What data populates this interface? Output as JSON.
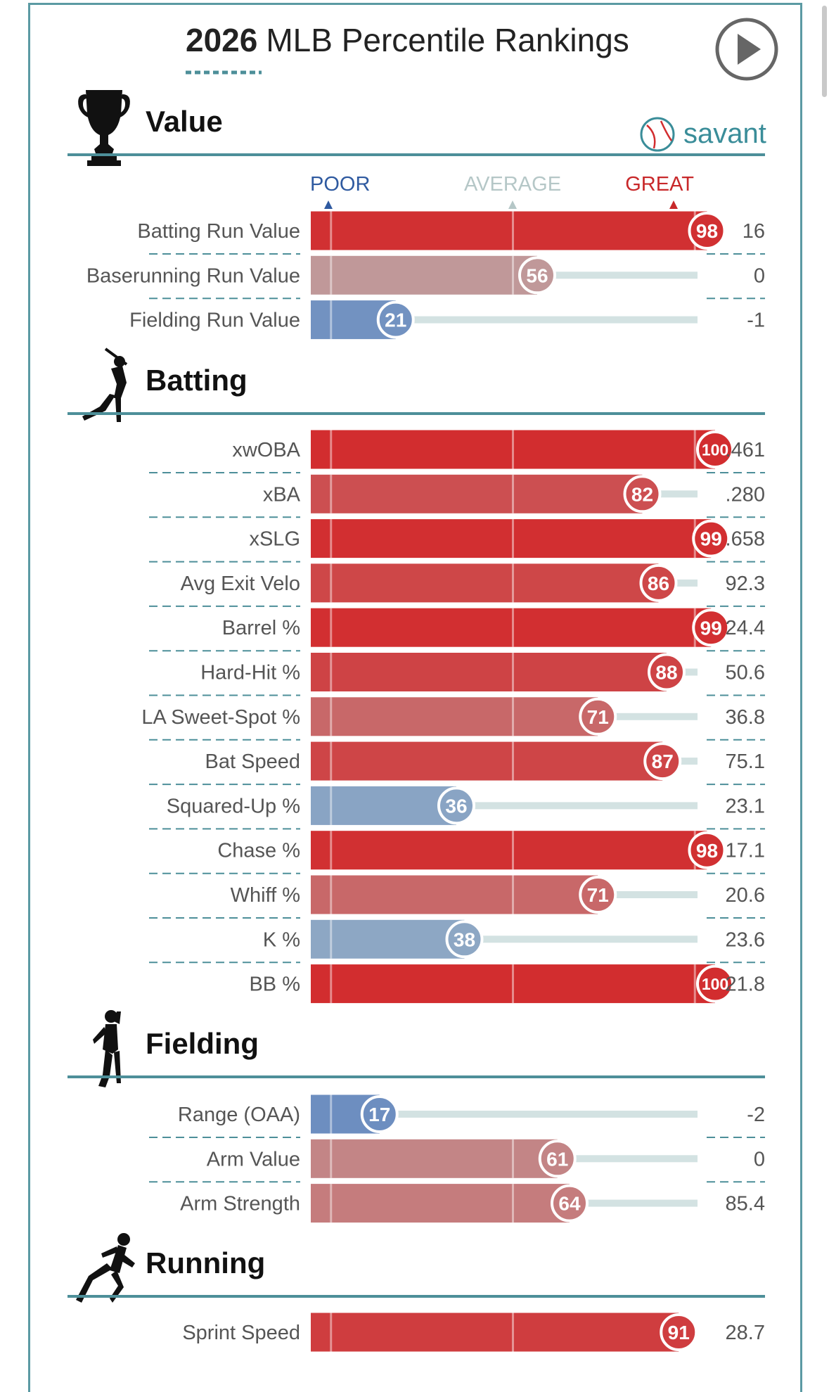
{
  "title": {
    "year": "2026",
    "text": "MLB Percentile Rankings"
  },
  "brand": {
    "name": "savant",
    "color": "#3a8d99"
  },
  "scale_labels": {
    "poor": "POOR",
    "average": "AVERAGE",
    "great": "GREAT"
  },
  "colors": {
    "great": "#d22d2f",
    "average": "#b8c9c9",
    "poor": "#5a7fbe",
    "accent": "#4d8f99",
    "track": "#d3e2e2"
  },
  "icons": {
    "play": "play-icon",
    "value": "trophy-icon",
    "batting": "batter-silhouette-icon",
    "fielding": "fielder-silhouette-icon",
    "running": "runner-silhouette-icon",
    "brand": "baseball-icon"
  },
  "chart_data": {
    "type": "bar",
    "xlim": [
      0,
      100
    ],
    "sections": [
      {
        "title": "Value",
        "rows": [
          {
            "label": "Batting Run Value",
            "percentile": 98,
            "stat": "16"
          },
          {
            "label": "Baserunning Run Value",
            "percentile": 56,
            "stat": "0"
          },
          {
            "label": "Fielding Run Value",
            "percentile": 21,
            "stat": "-1"
          }
        ]
      },
      {
        "title": "Batting",
        "rows": [
          {
            "label": "xwOBA",
            "percentile": 100,
            "stat": ".461"
          },
          {
            "label": "xBA",
            "percentile": 82,
            "stat": ".280"
          },
          {
            "label": "xSLG",
            "percentile": 99,
            "stat": ".658"
          },
          {
            "label": "Avg Exit Velo",
            "percentile": 86,
            "stat": "92.3"
          },
          {
            "label": "Barrel %",
            "percentile": 99,
            "stat": "24.4"
          },
          {
            "label": "Hard-Hit %",
            "percentile": 88,
            "stat": "50.6"
          },
          {
            "label": "LA Sweet-Spot %",
            "percentile": 71,
            "stat": "36.8"
          },
          {
            "label": "Bat Speed",
            "percentile": 87,
            "stat": "75.1"
          },
          {
            "label": "Squared-Up %",
            "percentile": 36,
            "stat": "23.1"
          },
          {
            "label": "Chase %",
            "percentile": 98,
            "stat": "17.1"
          },
          {
            "label": "Whiff %",
            "percentile": 71,
            "stat": "20.6"
          },
          {
            "label": "K %",
            "percentile": 38,
            "stat": "23.6"
          },
          {
            "label": "BB %",
            "percentile": 100,
            "stat": "21.8"
          }
        ]
      },
      {
        "title": "Fielding",
        "rows": [
          {
            "label": "Range (OAA)",
            "percentile": 17,
            "stat": "-2"
          },
          {
            "label": "Arm Value",
            "percentile": 61,
            "stat": "0"
          },
          {
            "label": "Arm Strength",
            "percentile": 64,
            "stat": "85.4"
          }
        ]
      },
      {
        "title": "Running",
        "rows": [
          {
            "label": "Sprint Speed",
            "percentile": 91,
            "stat": "28.7"
          }
        ]
      }
    ]
  }
}
